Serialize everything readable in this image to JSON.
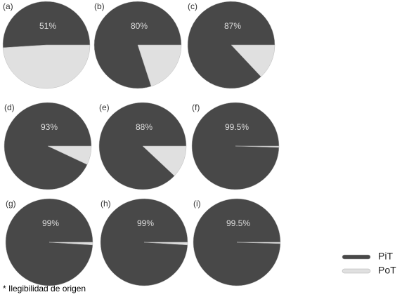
{
  "chart_data": [
    {
      "type": "pie",
      "title": "(a)",
      "categories": [
        "PiT",
        "PoT"
      ],
      "values": [
        51,
        49
      ],
      "value_labels": [
        "51%",
        null
      ],
      "colors": [
        "#484848",
        "#e0e0e0"
      ]
    },
    {
      "type": "pie",
      "title": "(b)",
      "categories": [
        "PiT",
        "PoT"
      ],
      "values": [
        80,
        20
      ],
      "value_labels": [
        "80%",
        null
      ],
      "colors": [
        "#484848",
        "#e0e0e0"
      ]
    },
    {
      "type": "pie",
      "title": "(c)",
      "categories": [
        "PiT",
        "PoT"
      ],
      "values": [
        87,
        13
      ],
      "value_labels": [
        "87%",
        null
      ],
      "colors": [
        "#484848",
        "#e0e0e0"
      ]
    },
    {
      "type": "pie",
      "title": "(d)",
      "categories": [
        "PiT",
        "PoT"
      ],
      "values": [
        93,
        7
      ],
      "value_labels": [
        "93%",
        null
      ],
      "colors": [
        "#484848",
        "#e0e0e0"
      ]
    },
    {
      "type": "pie",
      "title": "(e)",
      "categories": [
        "PiT",
        "PoT"
      ],
      "values": [
        88,
        12
      ],
      "value_labels": [
        "88%",
        null
      ],
      "colors": [
        "#484848",
        "#e0e0e0"
      ]
    },
    {
      "type": "pie",
      "title": "(f)",
      "categories": [
        "PiT",
        "PoT"
      ],
      "values": [
        99.5,
        0.5
      ],
      "value_labels": [
        "99.5%",
        null
      ],
      "colors": [
        "#484848",
        "#e0e0e0"
      ]
    },
    {
      "type": "pie",
      "title": "(g)",
      "categories": [
        "PiT",
        "PoT"
      ],
      "values": [
        99,
        1
      ],
      "value_labels": [
        "99%",
        null
      ],
      "colors": [
        "#484848",
        "#e0e0e0"
      ]
    },
    {
      "type": "pie",
      "title": "(h)",
      "categories": [
        "PiT",
        "PoT"
      ],
      "values": [
        99,
        1
      ],
      "value_labels": [
        "99%",
        null
      ],
      "colors": [
        "#484848",
        "#e0e0e0"
      ]
    },
    {
      "type": "pie",
      "title": "(i)",
      "categories": [
        "PiT",
        "PoT"
      ],
      "values": [
        99.5,
        0.5
      ],
      "value_labels": [
        "99.5%",
        null
      ],
      "colors": [
        "#484848",
        "#e0e0e0"
      ]
    }
  ],
  "footnote": "* Ilegibilidad de origen"
}
